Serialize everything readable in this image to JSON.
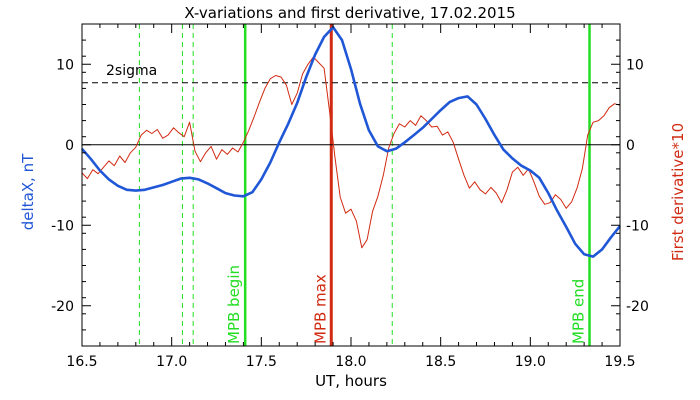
{
  "chart_data": {
    "type": "line",
    "title": "X-variations and first derivative, 17.02.2015",
    "xlabel": "UT, hours",
    "ylabel_left": "deltaX, nT",
    "ylabel_right": "First derivative*10",
    "xlim": [
      16.5,
      19.5
    ],
    "ylim": [
      -25,
      15
    ],
    "x_ticks": [
      "16.5",
      "17.0",
      "17.5",
      "18.0",
      "18.5",
      "19.0",
      "19.5"
    ],
    "x_tick_values": [
      16.5,
      17.0,
      17.5,
      18.0,
      18.5,
      19.0,
      19.5
    ],
    "y_ticks": [
      "10",
      "0",
      "-10",
      "-20"
    ],
    "y_tick_values": [
      10,
      0,
      -10,
      -20
    ],
    "grid": false,
    "colors": {
      "deltaX": "#1f57d6",
      "derivative": "#d12a12",
      "mpb": "#22dd22",
      "mpb_max": "#d12a12",
      "axis": "#000000"
    },
    "zero_line": 0,
    "sigma_level": 7.7,
    "sigma_label": "2sigma",
    "series": [
      {
        "name": "deltaX, nT",
        "color": "#1f57d6",
        "x": [
          16.5,
          16.55,
          16.6,
          16.65,
          16.7,
          16.75,
          16.8,
          16.85,
          16.9,
          16.95,
          17.0,
          17.05,
          17.1,
          17.15,
          17.2,
          17.25,
          17.3,
          17.35,
          17.4,
          17.45,
          17.5,
          17.55,
          17.6,
          17.65,
          17.7,
          17.75,
          17.8,
          17.85,
          17.9,
          17.95,
          18.0,
          18.05,
          18.1,
          18.15,
          18.2,
          18.25,
          18.3,
          18.35,
          18.4,
          18.45,
          18.5,
          18.55,
          18.6,
          18.65,
          18.7,
          18.75,
          18.8,
          18.85,
          18.9,
          18.95,
          19.0,
          19.05,
          19.1,
          19.15,
          19.2,
          19.25,
          19.3,
          19.35,
          19.4,
          19.45,
          19.5
        ],
        "y": [
          -0.5,
          -1.8,
          -3.2,
          -4.3,
          -5.1,
          -5.6,
          -5.7,
          -5.6,
          -5.3,
          -5.0,
          -4.6,
          -4.2,
          -4.1,
          -4.3,
          -4.8,
          -5.4,
          -6.0,
          -6.3,
          -6.4,
          -5.9,
          -4.3,
          -2.2,
          0.3,
          2.6,
          5.2,
          8.4,
          11.2,
          13.4,
          14.6,
          13.0,
          9.4,
          5.1,
          1.8,
          -0.2,
          -0.8,
          -0.5,
          0.3,
          1.2,
          2.1,
          3.2,
          4.3,
          5.3,
          5.8,
          6.0,
          5.0,
          3.2,
          1.2,
          -0.6,
          -1.7,
          -2.6,
          -3.2,
          -4.1,
          -6.0,
          -8.2,
          -10.2,
          -12.3,
          -13.6,
          -13.9,
          -13.0,
          -11.5,
          -10.1
        ]
      },
      {
        "name": "First derivative*10",
        "color": "#d12a12",
        "x": [
          16.5,
          16.53,
          16.56,
          16.59,
          16.62,
          16.65,
          16.68,
          16.71,
          16.74,
          16.77,
          16.8,
          16.83,
          16.86,
          16.89,
          16.92,
          16.95,
          16.98,
          17.01,
          17.04,
          17.07,
          17.1,
          17.13,
          17.16,
          17.19,
          17.22,
          17.25,
          17.28,
          17.31,
          17.34,
          17.37,
          17.4,
          17.43,
          17.46,
          17.49,
          17.52,
          17.55,
          17.58,
          17.61,
          17.64,
          17.67,
          17.7,
          17.73,
          17.76,
          17.79,
          17.82,
          17.85,
          17.88,
          17.91,
          17.94,
          17.97,
          18.0,
          18.03,
          18.06,
          18.09,
          18.12,
          18.15,
          18.18,
          18.21,
          18.24,
          18.27,
          18.3,
          18.33,
          18.36,
          18.39,
          18.42,
          18.45,
          18.48,
          18.51,
          18.54,
          18.57,
          18.6,
          18.63,
          18.66,
          18.69,
          18.72,
          18.75,
          18.78,
          18.81,
          18.84,
          18.87,
          18.9,
          18.93,
          18.96,
          18.99,
          19.02,
          19.05,
          19.08,
          19.11,
          19.14,
          19.17,
          19.2,
          19.23,
          19.26,
          19.29,
          19.32,
          19.35,
          19.38,
          19.41,
          19.44,
          19.47,
          19.5
        ],
        "y": [
          -3.5,
          -4.2,
          -3.1,
          -3.6,
          -2.8,
          -2.0,
          -2.6,
          -1.4,
          -2.2,
          -1.0,
          -0.3,
          1.2,
          1.8,
          1.4,
          1.9,
          0.8,
          1.2,
          2.1,
          1.5,
          1.0,
          2.8,
          -0.8,
          -2.1,
          -1.0,
          -0.2,
          -1.8,
          -0.6,
          -1.2,
          -0.4,
          -0.9,
          0.3,
          1.8,
          3.5,
          5.3,
          7.0,
          8.2,
          8.6,
          8.4,
          7.4,
          5.0,
          6.4,
          8.8,
          10.0,
          10.9,
          10.2,
          9.5,
          4.2,
          -1.5,
          -6.5,
          -8.5,
          -8.0,
          -9.5,
          -12.8,
          -11.8,
          -8.3,
          -6.4,
          -3.8,
          -0.4,
          1.4,
          2.6,
          2.2,
          3.0,
          2.4,
          3.6,
          3.0,
          2.2,
          2.3,
          1.2,
          1.6,
          0.3,
          -1.8,
          -3.8,
          -5.4,
          -4.6,
          -5.6,
          -6.1,
          -5.3,
          -6.0,
          -7.2,
          -5.6,
          -3.4,
          -2.8,
          -3.8,
          -3.0,
          -4.6,
          -6.4,
          -7.4,
          -7.2,
          -6.2,
          -6.8,
          -7.9,
          -7.1,
          -5.4,
          -3.0,
          1.2,
          2.8,
          3.0,
          3.6,
          4.6,
          5.1,
          4.9
        ]
      }
    ],
    "event_lines": [
      {
        "x": 16.82,
        "style": "dashed",
        "label": ""
      },
      {
        "x": 17.06,
        "style": "dashed",
        "label": ""
      },
      {
        "x": 17.12,
        "style": "dashed",
        "label": ""
      },
      {
        "x": 17.41,
        "style": "solid",
        "label": "MPB begin"
      },
      {
        "x": 17.89,
        "style": "solid-red",
        "label": "MPB max"
      },
      {
        "x": 18.23,
        "style": "dashed",
        "label": ""
      },
      {
        "x": 19.33,
        "style": "solid",
        "label": "MPB end"
      }
    ]
  }
}
